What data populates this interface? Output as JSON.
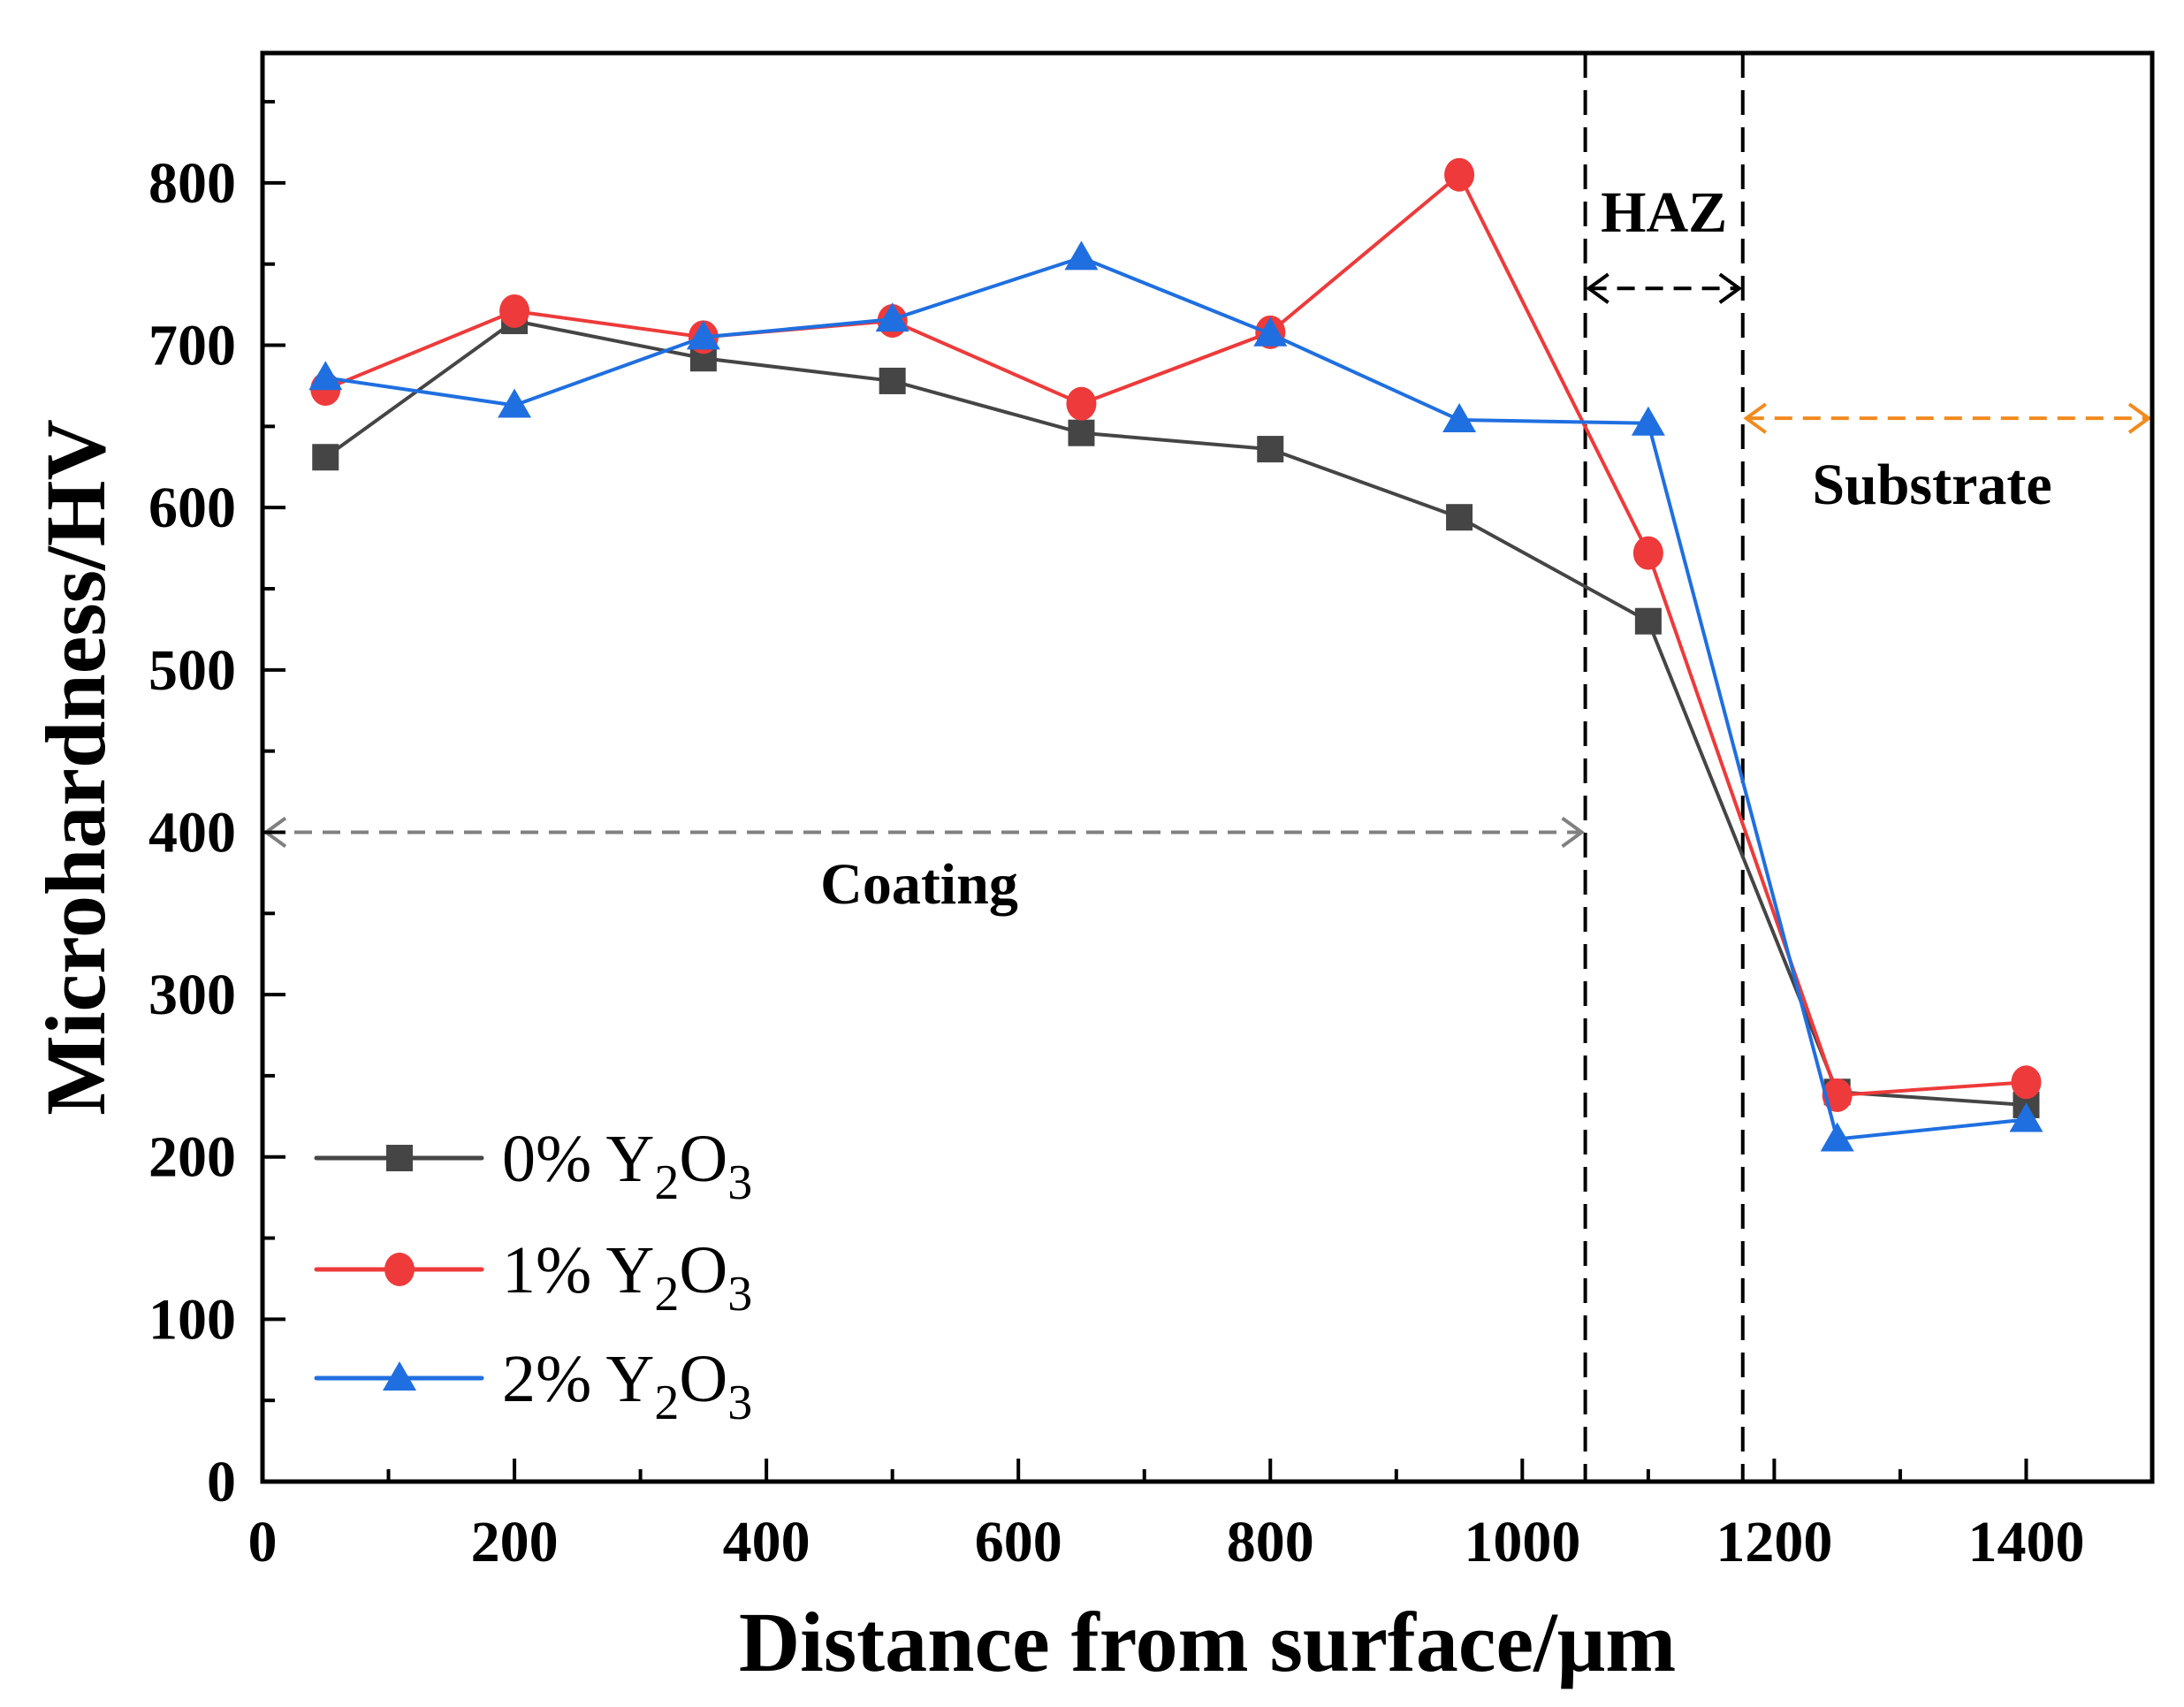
{
  "chart_data": {
    "type": "line",
    "xlabel": "Distance from surface/μm",
    "ylabel": "Microhardness/HV",
    "xlim": [
      0,
      1500
    ],
    "ylim": [
      0,
      880
    ],
    "xticks": [
      0,
      200,
      400,
      600,
      800,
      1000,
      1200,
      1400
    ],
    "yticks": [
      0,
      100,
      200,
      300,
      400,
      500,
      600,
      700,
      800
    ],
    "x": [
      50,
      200,
      350,
      500,
      650,
      800,
      950,
      1100,
      1250,
      1400
    ],
    "series": [
      {
        "name": "0% Y2O3",
        "label_main": "0% Y",
        "sub1": "2",
        "mid": "O",
        "sub2": "3",
        "color": "#454545",
        "marker": "square",
        "values": [
          631,
          715,
          692,
          678,
          646,
          636,
          594,
          530,
          240,
          232
        ]
      },
      {
        "name": "1% Y2O3",
        "label_main": "1% Y",
        "sub1": "2",
        "mid": "O",
        "sub2": "3",
        "color": "#ee3a3a",
        "marker": "circle",
        "values": [
          673,
          721,
          705,
          715,
          664,
          708,
          805,
          572,
          238,
          246
        ]
      },
      {
        "name": "2% Y2O3",
        "label_main": "2% Y",
        "sub1": "2",
        "mid": "O",
        "sub2": "3",
        "color": "#1f6fe0",
        "marker": "triangle",
        "values": [
          680,
          663,
          705,
          716,
          754,
          707,
          654,
          652,
          211,
          223
        ]
      }
    ],
    "legend_position": "bottom-left",
    "grid": false,
    "annotations": {
      "haz": {
        "text": "HAZ",
        "x_range": [
          1050,
          1175
        ],
        "arrow_y": 735,
        "color": "#000000"
      },
      "substrate": {
        "text": "Substrate",
        "x_range": [
          1175,
          1500
        ],
        "arrow_y": 655,
        "color": "#f28a1e"
      },
      "coating": {
        "text": "Coating",
        "x_range": [
          0,
          1050
        ],
        "arrow_y": 400,
        "color": "#808080"
      },
      "boundaries": [
        1050,
        1175
      ]
    }
  }
}
